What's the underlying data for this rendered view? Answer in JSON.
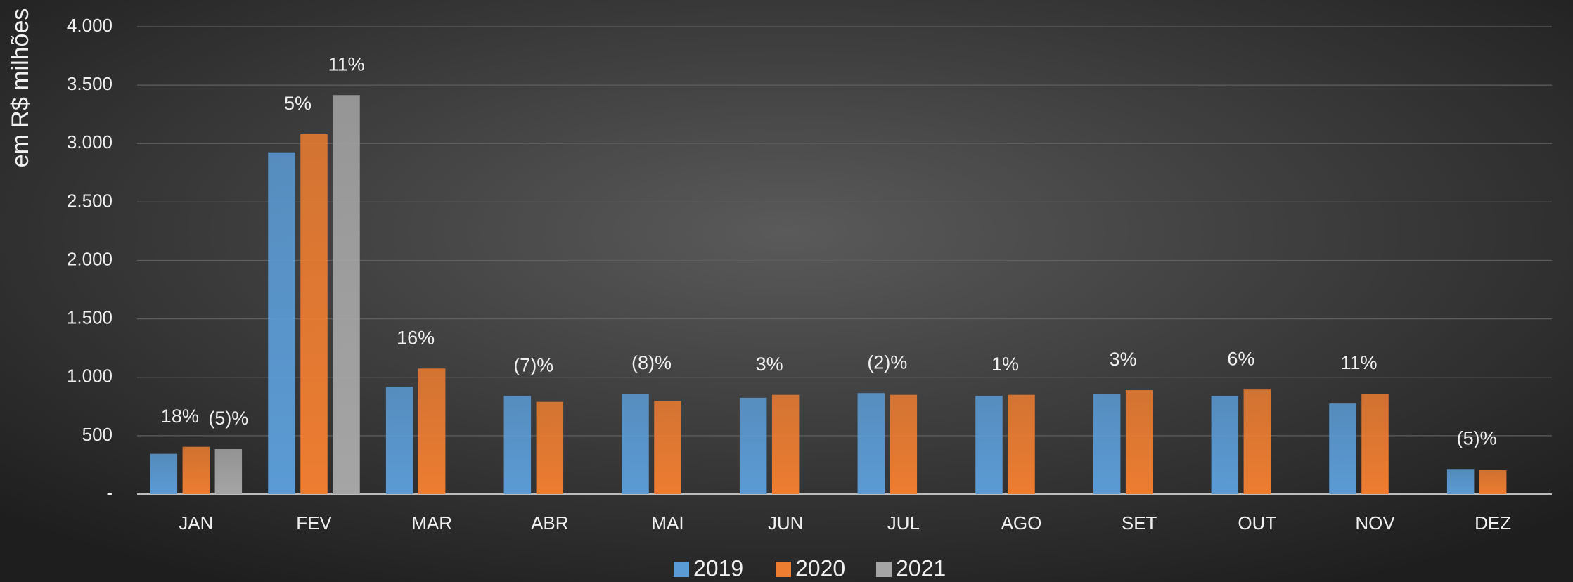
{
  "chart_data": {
    "type": "bar",
    "y_axis_label": "em R$ milhões",
    "categories": [
      "JAN",
      "FEV",
      "MAR",
      "ABR",
      "MAI",
      "JUN",
      "JUL",
      "AGO",
      "SET",
      "OUT",
      "NOV",
      "DEZ"
    ],
    "series": [
      {
        "name": "2019",
        "color": "#5b9bd5",
        "values": [
          345,
          2925,
          920,
          840,
          860,
          825,
          865,
          840,
          860,
          840,
          775,
          215
        ]
      },
      {
        "name": "2020",
        "color": "#ed7d31",
        "values": [
          405,
          3080,
          1075,
          790,
          800,
          850,
          850,
          850,
          890,
          895,
          860,
          205
        ],
        "growth": [
          "18%",
          "5%",
          "16%",
          "(7)%",
          "(8)%",
          "3%",
          "(2)%",
          "1%",
          "3%",
          "6%",
          "11%",
          "(5)%"
        ]
      },
      {
        "name": "2021",
        "color": "#a5a5a5",
        "values": [
          385,
          3415,
          null,
          null,
          null,
          null,
          null,
          null,
          null,
          null,
          null,
          null
        ],
        "growth": [
          "(5)%",
          "11%",
          null,
          null,
          null,
          null,
          null,
          null,
          null,
          null,
          null,
          null
        ]
      }
    ],
    "ylim": [
      0,
      4000
    ],
    "yticks": [
      {
        "value": 0,
        "label": "-"
      },
      500,
      {
        "value": 1000,
        "label": "1.000"
      },
      {
        "value": 1500,
        "label": "1.500"
      },
      {
        "value": 2000,
        "label": "2.000"
      },
      {
        "value": 2500,
        "label": "2.500"
      },
      {
        "value": 3000,
        "label": "3.000"
      },
      {
        "value": 3500,
        "label": "3.500"
      },
      {
        "value": 4000,
        "label": "4.000"
      }
    ],
    "grid": true,
    "legend": "bottom"
  }
}
